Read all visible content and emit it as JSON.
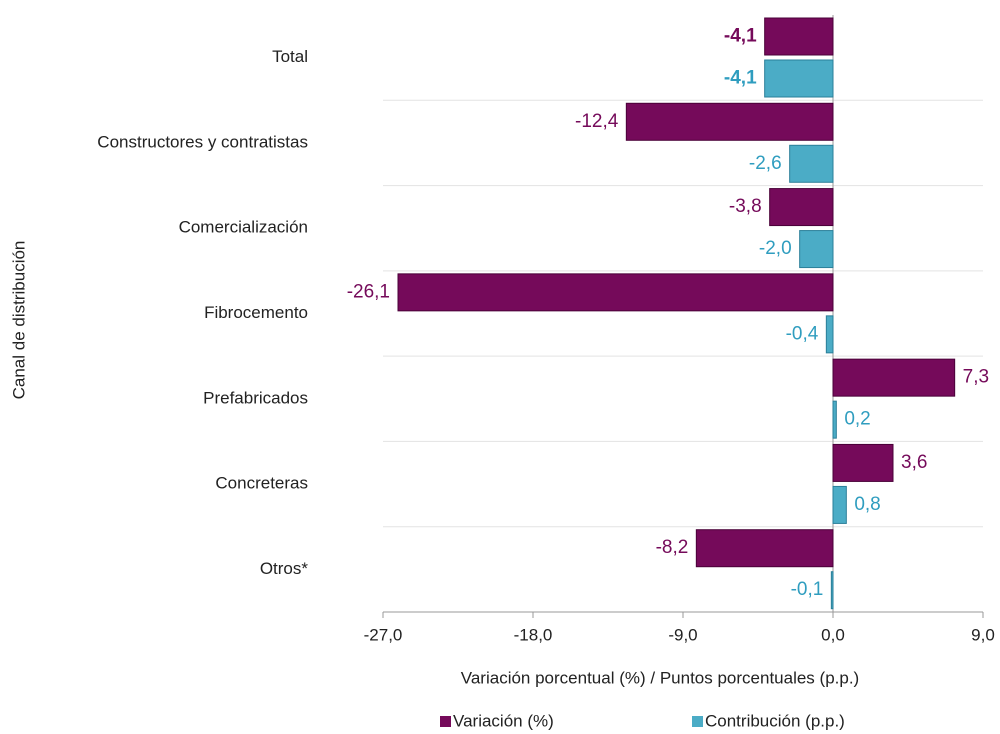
{
  "chart_data": {
    "type": "hbar",
    "categories": [
      "Total",
      "Constructores y contratistas",
      "Comercialización",
      "Fibrocemento",
      "Prefabricados",
      "Concreteras",
      "Otros*"
    ],
    "series": [
      {
        "name": "Variación (%)",
        "color": "#750a5a",
        "values": [
          -4.1,
          -12.4,
          -3.8,
          -26.1,
          7.3,
          3.6,
          -8.2
        ],
        "value_labels": [
          "-4,1",
          "-12,4",
          "-3,8",
          "-26,1",
          "7,3",
          "3,6",
          "-8,2"
        ]
      },
      {
        "name": "Contribución (p.p.)",
        "color": "#4bacc6",
        "values": [
          -4.1,
          -2.6,
          -2.0,
          -0.4,
          0.2,
          0.8,
          -0.1
        ],
        "value_labels": [
          "-4,1",
          "-2,6",
          "-2,0",
          "-0,4",
          "0,2",
          "0,8",
          "-0,1"
        ]
      }
    ],
    "xlabel": "Variación porcentual (%) / Puntos porcentuales (p.p.)",
    "ylabel": "Canal de distribución",
    "xlim": [
      -27,
      9
    ],
    "xticks": [
      {
        "value": -27,
        "label": "-27,0"
      },
      {
        "value": -18,
        "label": "-18,0"
      },
      {
        "value": -9,
        "label": "-9,0"
      },
      {
        "value": 0,
        "label": "0,0"
      },
      {
        "value": 9,
        "label": "9,0"
      }
    ],
    "legend": "bottom"
  }
}
